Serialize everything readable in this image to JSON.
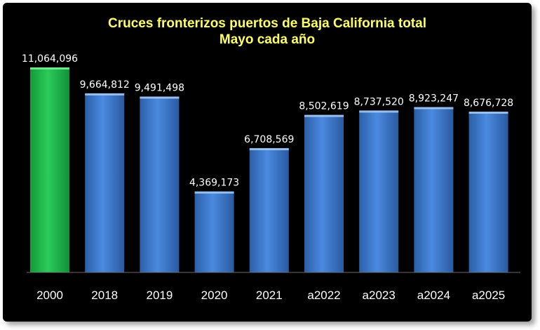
{
  "chart_data": {
    "type": "bar",
    "title": "Cruces fronterizos puertos de Baja California total",
    "subtitle": "Mayo cada año",
    "categories": [
      "2000",
      "2018",
      "2019",
      "2020",
      "2021",
      "a2022",
      "a2023",
      "a2024",
      "a2025"
    ],
    "values": [
      11064096,
      9664812,
      9491498,
      4369173,
      6708569,
      8502619,
      8737520,
      8923247,
      8676728
    ],
    "value_labels": [
      "11,064,096",
      "9,664,812",
      "9,491,498",
      "4,369,173",
      "6,708,569",
      "8,502,619",
      "8,737,520",
      "8,923,247",
      "8,676,728"
    ],
    "ylim": [
      0,
      11064096
    ],
    "grid": false,
    "legend": "none",
    "colors": {
      "highlight_bar": "#22b14c",
      "default_bar": "#3f7fd0",
      "title": "#ffff66",
      "labels": "#ffffff",
      "background": "#000000"
    },
    "highlight_index": 0
  }
}
